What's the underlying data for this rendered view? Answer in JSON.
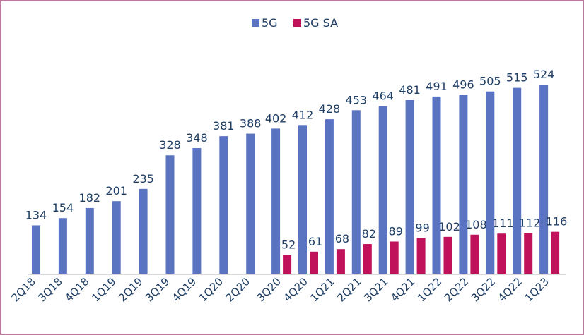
{
  "chart_data": {
    "type": "bar",
    "title": "",
    "xlabel": "",
    "ylabel": "",
    "grid": false,
    "legend": "top-center",
    "ylim": [
      0,
      524
    ],
    "categories": [
      "2Q18",
      "3Q18",
      "4Q18",
      "1Q19",
      "2Q19",
      "3Q19",
      "4Q19",
      "1Q20",
      "2Q20",
      "3Q20",
      "4Q20",
      "1Q21",
      "2Q21",
      "3Q21",
      "4Q21",
      "1Q22",
      "2Q22",
      "3Q22",
      "4Q22",
      "1Q23"
    ],
    "series": [
      {
        "name": "5G",
        "color": "#5b74c2",
        "values": [
          134,
          154,
          182,
          201,
          235,
          328,
          348,
          381,
          388,
          402,
          412,
          428,
          453,
          464,
          481,
          491,
          496,
          505,
          515,
          524
        ]
      },
      {
        "name": "5G SA",
        "color": "#c0125a",
        "values": [
          null,
          null,
          null,
          null,
          null,
          null,
          null,
          null,
          null,
          52,
          61,
          68,
          82,
          89,
          99,
          102,
          108,
          111,
          112,
          116
        ]
      }
    ]
  }
}
